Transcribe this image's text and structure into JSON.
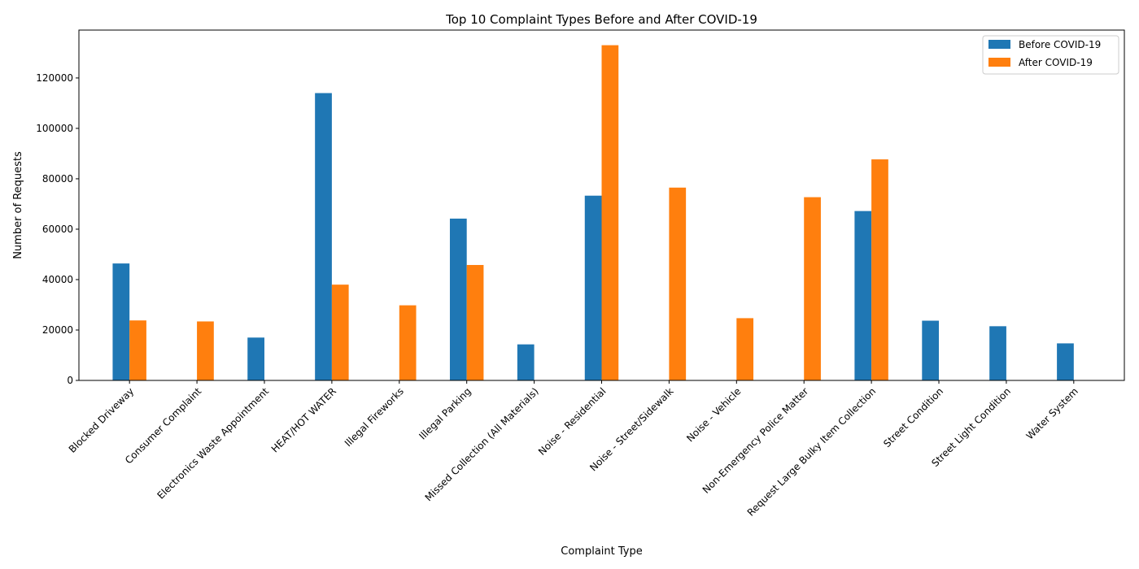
{
  "chart_data": {
    "type": "bar",
    "title": "Top 10 Complaint Types Before and After COVID-19",
    "xlabel": "Complaint Type",
    "ylabel": "Number of Requests",
    "ylim": [
      0,
      139000
    ],
    "yticks": [
      0,
      20000,
      40000,
      60000,
      80000,
      100000,
      120000
    ],
    "legend_position": "top-right",
    "grid": false,
    "categories": [
      "Blocked Driveway",
      "Consumer Complaint",
      "Electronics Waste Appointment",
      "HEAT/HOT WATER",
      "Illegal Fireworks",
      "Illegal Parking",
      "Missed Collection (All Materials)",
      "Noise - Residential",
      "Noise - Street/Sidewalk",
      "Noise - Vehicle",
      "Non-Emergency Police Matter",
      "Request Large Bulky Item Collection",
      "Street Condition",
      "Street Light Condition",
      "Water System"
    ],
    "series": [
      {
        "name": "Before COVID-19",
        "color": "#1f77b4",
        "values": [
          46400,
          null,
          17000,
          114000,
          null,
          64200,
          14300,
          73300,
          null,
          null,
          null,
          67200,
          23700,
          21500,
          14700
        ]
      },
      {
        "name": "After COVID-19",
        "color": "#ff7f0e",
        "values": [
          23800,
          23400,
          null,
          38000,
          29800,
          45800,
          null,
          133000,
          76500,
          24700,
          72700,
          87700,
          null,
          null,
          null
        ]
      }
    ]
  }
}
